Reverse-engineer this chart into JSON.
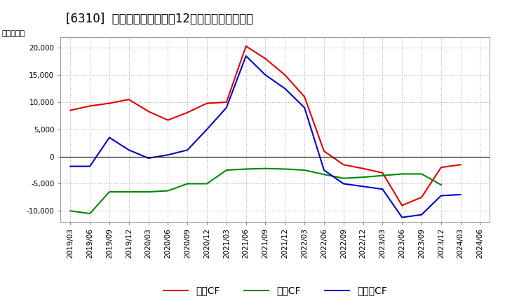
{
  "title": "[6310]  キャッシュフローの12か月移動合計の推移",
  "ylabel": "（百万円）",
  "background_color": "#ffffff",
  "plot_bg_color": "#ffffff",
  "grid_color": "#aaaaaa",
  "dates": [
    "2019/03",
    "2019/06",
    "2019/09",
    "2019/12",
    "2020/03",
    "2020/06",
    "2020/09",
    "2020/12",
    "2021/03",
    "2021/06",
    "2021/09",
    "2021/12",
    "2022/03",
    "2022/06",
    "2022/09",
    "2022/12",
    "2023/03",
    "2023/06",
    "2023/09",
    "2023/12",
    "2024/03",
    "2024/06"
  ],
  "eigyo_cf": [
    8500,
    9300,
    9800,
    10500,
    8300,
    6700,
    8100,
    9800,
    10000,
    20300,
    18000,
    15000,
    11000,
    1000,
    -1500,
    -2200,
    -3000,
    -9000,
    -7500,
    -2000,
    -1500,
    null
  ],
  "toshi_cf": [
    -10000,
    -10500,
    -6500,
    -6500,
    -6500,
    -6300,
    -5000,
    -5000,
    -2500,
    -2300,
    -2200,
    -2300,
    -2500,
    -3300,
    -4000,
    -3800,
    -3500,
    -3200,
    -3200,
    -5200,
    null,
    null
  ],
  "free_cf": [
    -1800,
    -1800,
    3500,
    1200,
    -300,
    300,
    1200,
    5000,
    9000,
    18500,
    15000,
    12500,
    9000,
    -2500,
    -5000,
    -5500,
    -6000,
    -11200,
    -10700,
    -7200,
    -7000,
    null
  ],
  "eigyo_color": "#dd0000",
  "toshi_color": "#008800",
  "free_color": "#0000cc",
  "ylim": [
    -12000,
    22000
  ],
  "yticks": [
    -10000,
    -5000,
    0,
    5000,
    10000,
    15000,
    20000
  ],
  "line_width": 1.5,
  "title_fontsize": 12,
  "legend_labels": [
    "営業CF",
    "投資CF",
    "フリーCF"
  ]
}
